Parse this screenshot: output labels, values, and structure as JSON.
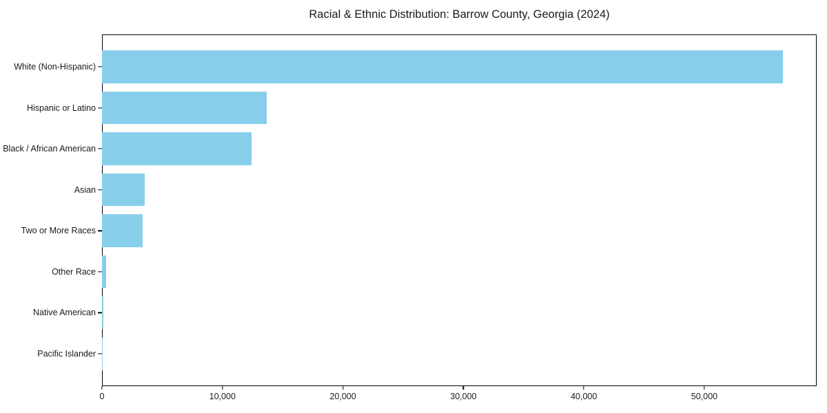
{
  "chart_data": {
    "type": "bar",
    "orientation": "horizontal",
    "title": "Racial & Ethnic Distribution: Barrow County, Georgia (2024)",
    "categories": [
      "White (Non-Hispanic)",
      "Hispanic or Latino",
      "Black / African American",
      "Asian",
      "Two or More Races",
      "Other Race",
      "Native American",
      "Pacific Islander"
    ],
    "values": [
      56500,
      13700,
      12400,
      3550,
      3380,
      340,
      120,
      40
    ],
    "xlabel": "",
    "ylabel": "",
    "xlim": [
      0,
      59325
    ],
    "x_ticks": [
      0,
      10000,
      20000,
      30000,
      40000,
      50000
    ],
    "x_tick_labels": [
      "0",
      "10,000",
      "20,000",
      "30,000",
      "40,000",
      "50,000"
    ],
    "bar_color": "#87ceeb",
    "background_color": "#ffffff",
    "text_color": "#1a1a1a",
    "grid": false,
    "legend": "none",
    "bar_thickness_ratio": 0.8
  }
}
